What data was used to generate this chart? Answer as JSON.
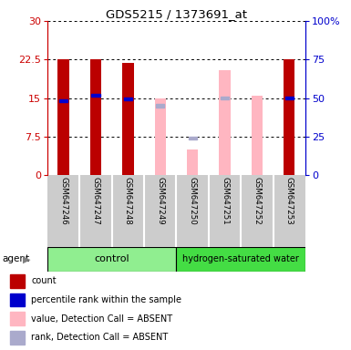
{
  "title": "GDS5215 / 1373691_at",
  "samples": [
    "GSM647246",
    "GSM647247",
    "GSM647248",
    "GSM647249",
    "GSM647250",
    "GSM647251",
    "GSM647252",
    "GSM647253"
  ],
  "red_bar_heights": [
    22.5,
    22.5,
    21.8,
    null,
    null,
    null,
    null,
    22.5
  ],
  "blue_marker_values": [
    14.5,
    15.5,
    14.8,
    null,
    null,
    null,
    null,
    15.0
  ],
  "pink_bar_heights": [
    null,
    null,
    null,
    15.0,
    5.0,
    20.5,
    15.5,
    null
  ],
  "lavender_marker_values": [
    null,
    null,
    null,
    13.5,
    7.2,
    15.0,
    null,
    null
  ],
  "ylim_left": [
    0,
    30
  ],
  "ylim_right": [
    0,
    100
  ],
  "yticks_left": [
    0,
    7.5,
    15,
    22.5,
    30
  ],
  "ytick_labels_left": [
    "0",
    "7.5",
    "15",
    "22.5",
    "30"
  ],
  "yticks_right": [
    0,
    25,
    50,
    75,
    100
  ],
  "ytick_labels_right": [
    "0",
    "25",
    "50",
    "75",
    "100%"
  ],
  "bar_width": 0.35,
  "red_color": "#BB0000",
  "blue_color": "#0000CC",
  "pink_color": "#FFB6C1",
  "lavender_color": "#AAAACC",
  "tick_area_bg": "#CCCCCC",
  "control_color": "#90EE90",
  "hydrogen_color": "#44DD44",
  "left_tick_color": "#CC0000",
  "right_tick_color": "#0000CC",
  "legend_items": [
    {
      "color": "#BB0000",
      "label": "count"
    },
    {
      "color": "#0000CC",
      "label": "percentile rank within the sample"
    },
    {
      "color": "#FFB6C1",
      "label": "value, Detection Call = ABSENT"
    },
    {
      "color": "#AAAACC",
      "label": "rank, Detection Call = ABSENT"
    }
  ]
}
